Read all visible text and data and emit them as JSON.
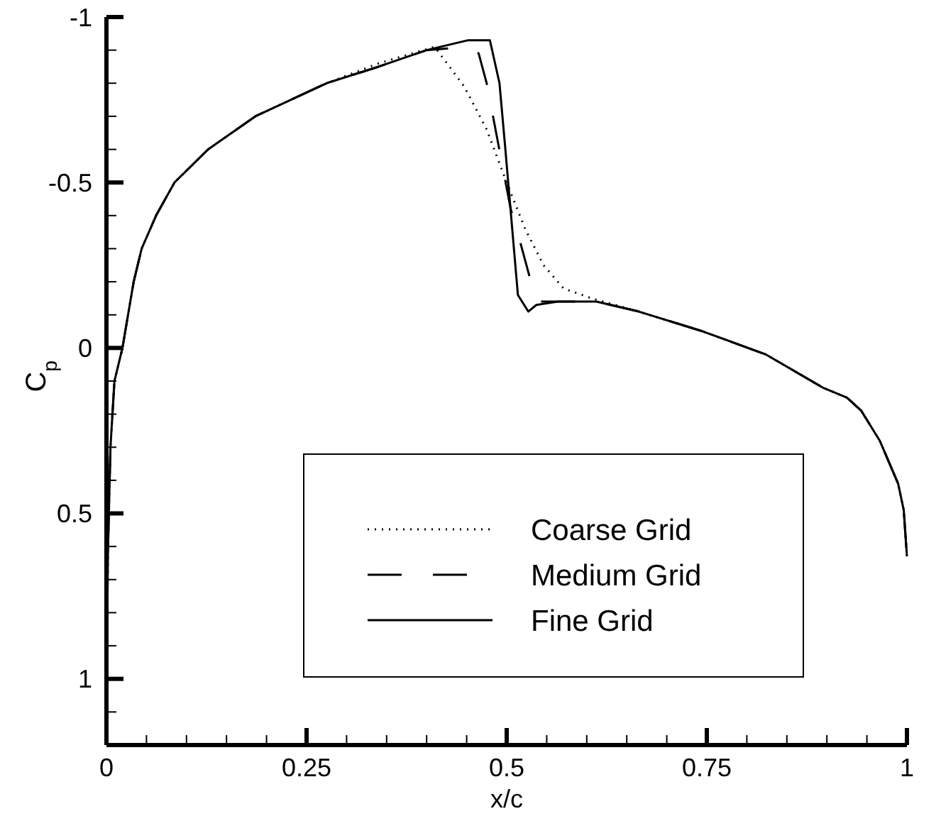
{
  "chart_data": {
    "type": "line",
    "xlabel": "x/c",
    "ylabel": "C$_{p}$",
    "xlim": [
      0,
      1
    ],
    "ylim": [
      1.2,
      -1
    ],
    "xticks": [
      0,
      {
        "value": 0.05,
        "label": null
      },
      {
        "value": 0.1,
        "label": null
      },
      {
        "value": 0.15,
        "label": null
      },
      {
        "value": 0.2,
        "label": null
      },
      0.25,
      {
        "value": 0.3,
        "label": null
      },
      {
        "value": 0.35,
        "label": null
      },
      {
        "value": 0.4,
        "label": null
      },
      {
        "value": 0.45,
        "label": null
      },
      0.5,
      {
        "value": 0.55,
        "label": null
      },
      {
        "value": 0.6,
        "label": null
      },
      {
        "value": 0.65,
        "label": null
      },
      {
        "value": 0.7,
        "label": null
      },
      0.75,
      {
        "value": 0.8,
        "label": null
      },
      {
        "value": 0.85,
        "label": null
      },
      {
        "value": 0.9,
        "label": null
      },
      {
        "value": 0.95,
        "label": null
      },
      1
    ],
    "yticks": [
      -1,
      {
        "value": -0.9,
        "label": null
      },
      {
        "value": -0.8,
        "label": null
      },
      {
        "value": -0.7,
        "label": null
      },
      {
        "value": -0.6,
        "label": null
      },
      -0.5,
      {
        "value": -0.4,
        "label": null
      },
      {
        "value": -0.3,
        "label": null
      },
      {
        "value": -0.2,
        "label": null
      },
      {
        "value": -0.1,
        "label": null
      },
      0,
      {
        "value": 0.1,
        "label": null
      },
      {
        "value": 0.2,
        "label": null
      },
      {
        "value": 0.3,
        "label": null
      },
      {
        "value": 0.4,
        "label": null
      },
      0.5,
      {
        "value": 0.6,
        "label": null
      },
      {
        "value": 0.7,
        "label": null
      },
      {
        "value": 0.8,
        "label": null
      },
      {
        "value": 0.9,
        "label": null
      },
      1,
      {
        "value": 1.1,
        "label": null
      }
    ],
    "legend": "bottom",
    "grid": false,
    "series": [
      {
        "name": "Coarse Grid",
        "color": "#000000",
        "line_style": "dotted",
        "x": [
          0,
          0.002,
          0.005,
          0.01,
          0.02,
          0.034,
          0.044,
          0.062,
          0.085,
          0.127,
          0.186,
          0.275,
          0.34,
          0.41,
          0.447,
          0.475,
          0.5,
          0.523,
          0.546,
          0.571,
          0.606,
          0.665,
          0.745,
          0.824,
          0.895,
          0.925,
          0.943,
          0.966,
          0.989,
          0.996,
          1
        ],
        "values": [
          1.0,
          0.6,
          0.3,
          0.1,
          0.0,
          -0.2,
          -0.3,
          -0.4,
          -0.5,
          -0.6,
          -0.7,
          -0.8,
          -0.86,
          -0.91,
          -0.79,
          -0.66,
          -0.5,
          -0.36,
          -0.25,
          -0.18,
          -0.15,
          -0.11,
          -0.05,
          0.02,
          0.12,
          0.15,
          0.19,
          0.28,
          0.41,
          0.49,
          0.63
        ]
      },
      {
        "name": "Medium Grid",
        "color": "#000000",
        "line_style": "dashed",
        "x": [
          0,
          0.002,
          0.005,
          0.01,
          0.02,
          0.034,
          0.044,
          0.062,
          0.085,
          0.127,
          0.186,
          0.275,
          0.34,
          0.4,
          0.452,
          0.465,
          0.475,
          0.505,
          0.518,
          0.537,
          0.564,
          0.612,
          0.665,
          0.745,
          0.824,
          0.895,
          0.925,
          0.943,
          0.966,
          0.989,
          0.996,
          1
        ],
        "values": [
          1.0,
          0.6,
          0.3,
          0.1,
          0.0,
          -0.2,
          -0.3,
          -0.4,
          -0.5,
          -0.6,
          -0.7,
          -0.8,
          -0.85,
          -0.9,
          -0.91,
          -0.89,
          -0.8,
          -0.42,
          -0.31,
          -0.14,
          -0.14,
          -0.14,
          -0.11,
          -0.05,
          0.02,
          0.12,
          0.15,
          0.19,
          0.28,
          0.41,
          0.49,
          0.63
        ]
      },
      {
        "name": "Fine Grid",
        "color": "#000000",
        "line_style": "solid",
        "x": [
          0,
          0.002,
          0.005,
          0.01,
          0.02,
          0.034,
          0.044,
          0.062,
          0.085,
          0.127,
          0.186,
          0.275,
          0.34,
          0.4,
          0.452,
          0.479,
          0.491,
          0.498,
          0.514,
          0.527,
          0.537,
          0.564,
          0.612,
          0.665,
          0.745,
          0.824,
          0.895,
          0.925,
          0.943,
          0.966,
          0.989,
          0.996,
          1
        ],
        "values": [
          1.0,
          0.6,
          0.3,
          0.1,
          0.0,
          -0.2,
          -0.3,
          -0.4,
          -0.5,
          -0.6,
          -0.7,
          -0.8,
          -0.85,
          -0.9,
          -0.93,
          -0.93,
          -0.8,
          -0.61,
          -0.16,
          -0.11,
          -0.13,
          -0.14,
          -0.14,
          -0.11,
          -0.05,
          0.02,
          0.12,
          0.15,
          0.19,
          0.28,
          0.41,
          0.49,
          0.63
        ]
      }
    ]
  }
}
